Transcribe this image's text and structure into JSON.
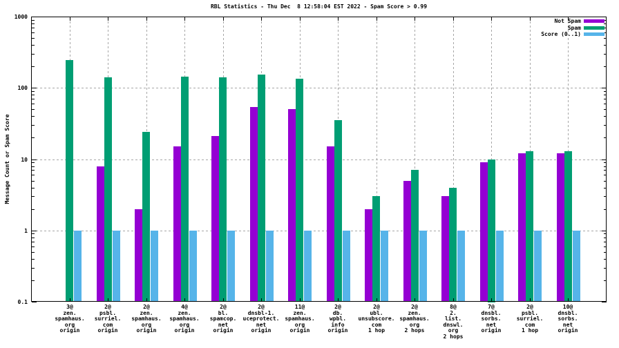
{
  "title": "RBL Statistics - Thu Dec  8 12:58:04 EST 2022 - Spam Score > 0.99",
  "ylabel": "Message Count or Spam Score",
  "legend": {
    "position": "top-right-inside",
    "entries": [
      {
        "label": "Not Spam",
        "color": "#9400d3"
      },
      {
        "label": "Spam",
        "color": "#009e73"
      },
      {
        "label": "Score (0..1)",
        "color": "#56b4e9"
      }
    ]
  },
  "chart_data": {
    "type": "bar",
    "title": "RBL Statistics - Thu Dec  8 12:58:04 EST 2022 - Spam Score > 0.99",
    "xlabel": "",
    "ylabel": "Message Count or Spam Score",
    "y_scale": "log",
    "ylim": [
      0.1,
      1000
    ],
    "yticks": [
      0.1,
      1,
      10,
      100,
      1000
    ],
    "ytick_labels": [
      "0.1",
      "1",
      "10",
      "100",
      "1000"
    ],
    "grid": true,
    "grid_color": "#a6a6a6",
    "legend_position": "top right inside",
    "categories": [
      "3@\nzen.\nspamhaus.\norg\norigin",
      "2@\npsbl.\nsurriel.\ncom\norigin",
      "2@\nzen.\nspamhaus.\norg\norigin",
      "4@\nzen.\nspamhaus.\norg\norigin",
      "2@\nbl.\nspamcop.\nnet\norigin",
      "2@\ndnsbl-1.\nuceprotect.\nnet\norigin",
      "11@\nzen.\nspamhaus.\norg\norigin",
      "2@\ndb.\nwpbl.\ninfo\norigin",
      "2@\nubl.\nunsubscore.\ncom\n1 hop",
      "2@\nzen.\nspamhaus.\norg\n2 hops",
      "8@\n2.\nlist.\ndnswl.\norg\n2 hops",
      "7@\ndnsbl.\nsorbs.\nnet\norigin",
      "2@\npsbl.\nsurriel.\ncom\n1 hop",
      "10@\ndnsbl.\nsorbs.\nnet\norigin"
    ],
    "series": [
      {
        "name": "Not Spam",
        "color": "#9400d3",
        "values": [
          null,
          8,
          2,
          15,
          21,
          54,
          50,
          15,
          2,
          5,
          3,
          9,
          12,
          12
        ]
      },
      {
        "name": "Spam",
        "color": "#009e73",
        "values": [
          245,
          140,
          24,
          145,
          140,
          155,
          135,
          35,
          3,
          7,
          4,
          10,
          13,
          13
        ]
      },
      {
        "name": "Score (0..1)",
        "color": "#56b4e9",
        "values": [
          1,
          1,
          1,
          1,
          1,
          1,
          1,
          1,
          1,
          1,
          1,
          1,
          1,
          1
        ]
      }
    ]
  }
}
